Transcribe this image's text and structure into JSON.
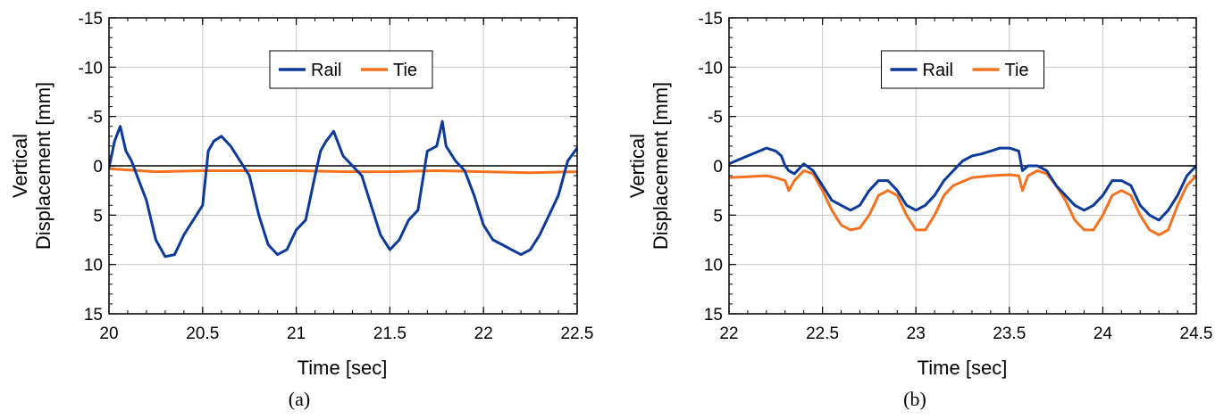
{
  "chart_data": [
    {
      "type": "line",
      "caption": "(a)",
      "xlabel": "Time [sec]",
      "ylabel": [
        "Vertical",
        "Displacement [mm]"
      ],
      "xlim": [
        20,
        22.5
      ],
      "ylim": [
        15,
        -15
      ],
      "y_inverted": true,
      "xticks": [
        20,
        20.5,
        21,
        21.5,
        22,
        22.5
      ],
      "xtick_labels": [
        "20",
        "20.5",
        "21",
        "21.5",
        "22",
        "22.5"
      ],
      "yticks": [
        -15,
        -10,
        -5,
        0,
        5,
        10,
        15
      ],
      "ytick_labels": [
        "-15",
        "-10",
        "-5",
        "0",
        "5",
        "10",
        "15"
      ],
      "grid": true,
      "zero_line": true,
      "legend": "top-center",
      "series": [
        {
          "name": "Rail",
          "color": "#0b3a9b",
          "x": [
            20.0,
            20.03,
            20.06,
            20.09,
            20.12,
            20.15,
            20.2,
            20.25,
            20.3,
            20.35,
            20.4,
            20.45,
            20.5,
            20.53,
            20.56,
            20.6,
            20.65,
            20.7,
            20.75,
            20.8,
            20.85,
            20.9,
            20.95,
            21.0,
            21.05,
            21.1,
            21.13,
            21.16,
            21.2,
            21.25,
            21.3,
            21.35,
            21.4,
            21.45,
            21.5,
            21.55,
            21.6,
            21.65,
            21.7,
            21.75,
            21.78,
            21.8,
            21.85,
            21.9,
            21.95,
            22.0,
            22.05,
            22.1,
            22.15,
            22.2,
            22.25,
            22.3,
            22.35,
            22.4,
            22.45,
            22.5
          ],
          "y": [
            0.2,
            -2.5,
            -4.0,
            -1.5,
            -0.5,
            1.0,
            3.5,
            7.5,
            9.2,
            9.0,
            7.0,
            5.5,
            4.0,
            -1.5,
            -2.5,
            -3.0,
            -2.0,
            -0.5,
            1.0,
            5.0,
            8.0,
            9.0,
            8.5,
            6.5,
            5.5,
            1.0,
            -1.5,
            -2.5,
            -3.5,
            -1.0,
            0.0,
            1.0,
            4.0,
            7.0,
            8.5,
            7.5,
            5.5,
            4.5,
            -1.5,
            -2.0,
            -4.5,
            -2.0,
            -0.5,
            0.5,
            3.0,
            6.0,
            7.5,
            8.0,
            8.5,
            9.0,
            8.5,
            7.0,
            5.0,
            3.0,
            -0.5,
            -1.8
          ]
        },
        {
          "name": "Tie",
          "color": "#f4711f",
          "x": [
            20.0,
            20.25,
            20.5,
            20.75,
            21.0,
            21.25,
            21.5,
            21.75,
            22.0,
            22.25,
            22.5
          ],
          "y": [
            0.3,
            0.6,
            0.5,
            0.5,
            0.5,
            0.6,
            0.6,
            0.5,
            0.6,
            0.7,
            0.6
          ]
        }
      ]
    },
    {
      "type": "line",
      "caption": "(b)",
      "xlabel": "Time [sec]",
      "ylabel": [
        "Vertical",
        "Displacement [mm]"
      ],
      "xlim": [
        22,
        24.5
      ],
      "ylim": [
        15,
        -15
      ],
      "y_inverted": true,
      "xticks": [
        22,
        22.5,
        23,
        23.5,
        24,
        24.5
      ],
      "xtick_labels": [
        "22",
        "22.5",
        "23",
        "23.5",
        "24",
        "24.5"
      ],
      "yticks": [
        -15,
        -10,
        -5,
        0,
        5,
        10,
        15
      ],
      "ytick_labels": [
        "-15",
        "-10",
        "-5",
        "0",
        "5",
        "10",
        "15"
      ],
      "grid": true,
      "zero_line": true,
      "legend": "top-center",
      "series": [
        {
          "name": "Rail",
          "color": "#0b3a9b",
          "x": [
            22.0,
            22.1,
            22.2,
            22.25,
            22.28,
            22.3,
            22.32,
            22.35,
            22.4,
            22.45,
            22.5,
            22.55,
            22.6,
            22.65,
            22.7,
            22.75,
            22.8,
            22.85,
            22.9,
            22.95,
            23.0,
            23.05,
            23.1,
            23.15,
            23.2,
            23.25,
            23.3,
            23.35,
            23.4,
            23.45,
            23.5,
            23.55,
            23.57,
            23.6,
            23.65,
            23.7,
            23.75,
            23.8,
            23.85,
            23.9,
            23.95,
            24.0,
            24.05,
            24.1,
            24.15,
            24.2,
            24.25,
            24.3,
            24.35,
            24.4,
            24.45,
            24.5
          ],
          "y": [
            -0.2,
            -1.0,
            -1.8,
            -1.5,
            -1.0,
            0.0,
            0.5,
            0.8,
            -0.2,
            0.5,
            2.0,
            3.5,
            4.0,
            4.5,
            4.0,
            2.5,
            1.5,
            1.5,
            2.5,
            4.0,
            4.5,
            4.0,
            3.0,
            1.5,
            0.5,
            -0.5,
            -1.0,
            -1.2,
            -1.5,
            -1.8,
            -1.8,
            -1.5,
            0.5,
            0.0,
            0.0,
            0.5,
            2.0,
            3.0,
            4.0,
            4.5,
            4.0,
            3.0,
            1.5,
            1.5,
            2.0,
            4.0,
            5.0,
            5.5,
            4.5,
            3.0,
            1.0,
            0.0
          ]
        },
        {
          "name": "Tie",
          "color": "#f4711f",
          "x": [
            22.0,
            22.1,
            22.2,
            22.25,
            22.3,
            22.32,
            22.35,
            22.4,
            22.45,
            22.5,
            22.55,
            22.6,
            22.65,
            22.7,
            22.75,
            22.8,
            22.85,
            22.9,
            22.95,
            23.0,
            23.05,
            23.1,
            23.15,
            23.2,
            23.3,
            23.4,
            23.5,
            23.55,
            23.57,
            23.6,
            23.65,
            23.7,
            23.75,
            23.8,
            23.85,
            23.9,
            23.95,
            24.0,
            24.05,
            24.1,
            24.15,
            24.2,
            24.25,
            24.3,
            24.35,
            24.4,
            24.45,
            24.5
          ],
          "y": [
            1.2,
            1.1,
            1.0,
            1.2,
            1.5,
            2.5,
            1.5,
            0.5,
            0.8,
            2.5,
            4.5,
            6.0,
            6.5,
            6.3,
            5.0,
            3.0,
            2.5,
            3.0,
            5.0,
            6.5,
            6.5,
            5.0,
            3.0,
            2.0,
            1.2,
            1.0,
            0.9,
            1.0,
            2.5,
            1.0,
            0.5,
            0.8,
            2.0,
            3.5,
            5.5,
            6.5,
            6.5,
            5.0,
            3.0,
            2.5,
            3.0,
            5.0,
            6.5,
            7.0,
            6.5,
            4.0,
            2.0,
            1.0
          ]
        }
      ]
    }
  ]
}
